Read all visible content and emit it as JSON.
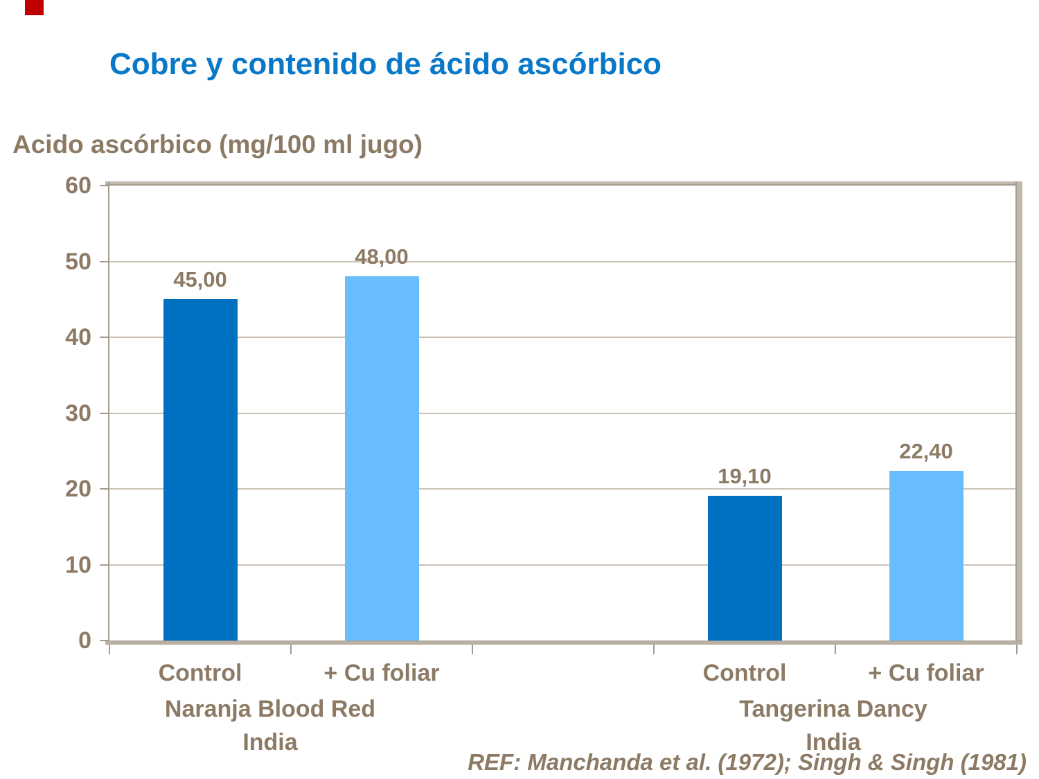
{
  "decor": {
    "corner_mark_color": "#C00000"
  },
  "chart_data": {
    "type": "bar",
    "title": "Cobre y contenido de ácido ascórbico",
    "ylabel": "Acido ascórbico (mg/100 ml jugo)",
    "xlabel": "",
    "ylim": [
      0,
      60
    ],
    "yticks": [
      0,
      10,
      20,
      30,
      40,
      50,
      60
    ],
    "grid": true,
    "legend": "none",
    "bar_colors": {
      "control": "#0070C0",
      "cu_foliar": "#6ABDFC"
    },
    "title_color": "#0878C8",
    "text_color": "#8C7A64",
    "groups": [
      {
        "label_lines": [
          "Naranja Blood Red",
          "India"
        ],
        "bars": [
          {
            "category": "Control",
            "value": 45.0,
            "value_label": "45,00",
            "color": "#0070C0"
          },
          {
            "category": "+ Cu foliar",
            "value": 48.0,
            "value_label": "48,00",
            "color": "#6ABDFC"
          }
        ]
      },
      {
        "label_lines": [
          "Tangerina Dancy",
          "India"
        ],
        "bars": [
          {
            "category": "Control",
            "value": 19.1,
            "value_label": "19,10",
            "color": "#0070C0"
          },
          {
            "category": "+ Cu foliar",
            "value": 22.4,
            "value_label": "22,40",
            "color": "#6ABDFC"
          }
        ]
      }
    ],
    "reference": "REF: Manchanda et al. (1972); Singh & Singh (1981)"
  }
}
